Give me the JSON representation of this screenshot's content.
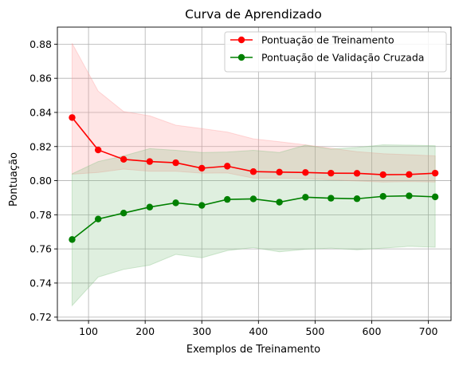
{
  "chart_data": {
    "type": "line",
    "title": "Curva de Aprendizado",
    "xlabel": "Exemplos de Treinamento",
    "ylabel": "Pontuação",
    "xlim": [
      45,
      740
    ],
    "ylim": [
      0.718,
      0.89
    ],
    "xticks": [
      100,
      200,
      300,
      400,
      500,
      600,
      700
    ],
    "yticks": [
      0.72,
      0.74,
      0.76,
      0.78,
      0.8,
      0.82,
      0.84,
      0.86,
      0.88
    ],
    "grid": true,
    "legend_position": "top-right",
    "x": [
      71,
      117,
      162,
      208,
      254,
      300,
      345,
      391,
      437,
      483,
      528,
      574,
      620,
      666,
      712
    ],
    "series": [
      {
        "name": "Pontuação de Treinamento",
        "color": "#ff0000",
        "band_color": "#ff9999",
        "values": [
          0.837,
          0.818,
          0.8125,
          0.8112,
          0.8105,
          0.8073,
          0.8085,
          0.8053,
          0.805,
          0.8048,
          0.8044,
          0.8043,
          0.8035,
          0.8036,
          0.8044
        ],
        "upper": [
          0.8805,
          0.8525,
          0.8405,
          0.838,
          0.8325,
          0.8305,
          0.8285,
          0.8245,
          0.8228,
          0.821,
          0.819,
          0.817,
          0.8158,
          0.8152,
          0.8145
        ],
        "lower": [
          0.8038,
          0.8048,
          0.8068,
          0.8055,
          0.8055,
          0.8044,
          0.8045,
          0.8015,
          0.8015,
          0.8012,
          0.8005,
          0.7998,
          0.7992,
          0.7995,
          0.7992
        ]
      },
      {
        "name": "Pontuação de Validação Cruzada",
        "color": "#008000",
        "band_color": "#80bf80",
        "values": [
          0.7655,
          0.7775,
          0.781,
          0.7845,
          0.787,
          0.7855,
          0.789,
          0.7893,
          0.7874,
          0.7903,
          0.7897,
          0.7894,
          0.7908,
          0.7911,
          0.7905
        ],
        "upper": [
          0.804,
          0.8112,
          0.8145,
          0.8188,
          0.8178,
          0.8165,
          0.8168,
          0.8178,
          0.8165,
          0.8208,
          0.8185,
          0.8195,
          0.821,
          0.8208,
          0.8205
        ],
        "lower": [
          0.7268,
          0.7435,
          0.748,
          0.7505,
          0.7568,
          0.7548,
          0.759,
          0.7608,
          0.7583,
          0.7598,
          0.7605,
          0.7595,
          0.7605,
          0.7615,
          0.761
        ]
      }
    ]
  }
}
